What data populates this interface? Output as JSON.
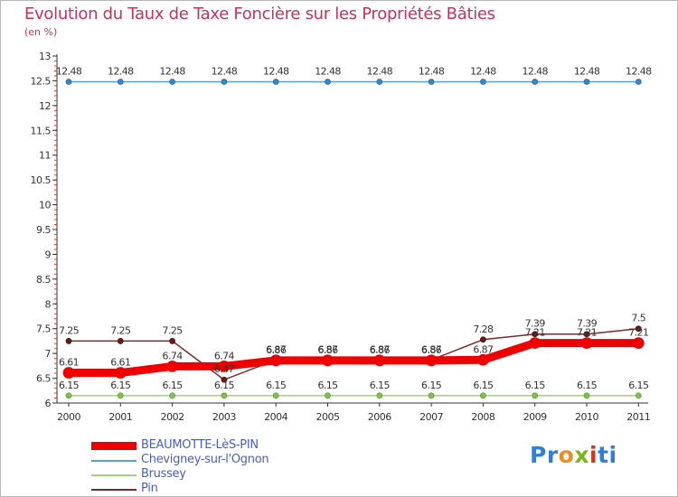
{
  "header": {
    "title": "Evolution du Taux de Taxe Foncière sur les Propriétés Bâties",
    "subtitle": "(en %)"
  },
  "brand": {
    "text": "Proxiti",
    "parts": [
      "Pr",
      "o",
      "x",
      "i",
      "ti"
    ]
  },
  "chart_data": {
    "type": "line",
    "title": "Evolution du Taux de Taxe Foncière sur les Propriétés Bâties",
    "ylabel": "(en %)",
    "xlabel": "",
    "ylim": [
      6,
      13
    ],
    "y_ticks": [
      6,
      6.5,
      7,
      7.5,
      8,
      8.5,
      9,
      9.5,
      10,
      10.5,
      11,
      11.5,
      12,
      12.5,
      13
    ],
    "y_tick_labels": [
      "6",
      "6.5",
      "7",
      "7.5",
      "8",
      "8.5",
      "9",
      "9.5",
      "10",
      "10.5",
      "11",
      "11.5",
      "12",
      "12.5",
      "13"
    ],
    "grid": false,
    "categories": [
      "2000",
      "2001",
      "2002",
      "2003",
      "2004",
      "2005",
      "2006",
      "2007",
      "2008",
      "2009",
      "2010",
      "2011"
    ],
    "legend_position": "bottom-left",
    "series": [
      {
        "name": "Chevigney-sur-l'Ognon",
        "color": "#5a9fd0",
        "values": [
          12.48,
          12.48,
          12.48,
          12.48,
          12.48,
          12.48,
          12.48,
          12.48,
          12.48,
          12.48,
          12.48,
          12.48
        ],
        "labels": [
          "12.48",
          "12.48",
          "12.48",
          "12.48",
          "12.48",
          "12.48",
          "12.48",
          "12.48",
          "12.48",
          "12.48",
          "12.48",
          "12.48"
        ]
      },
      {
        "name": "Brussey",
        "color": "#9bd67a",
        "values": [
          6.15,
          6.15,
          6.15,
          6.15,
          6.15,
          6.15,
          6.15,
          6.15,
          6.15,
          6.15,
          6.15,
          6.15
        ],
        "labels": [
          "6.15",
          "6.15",
          "6.15",
          "6.15",
          "6.15",
          "6.15",
          "6.15",
          "6.15",
          "6.15",
          "6.15",
          "6.15",
          "6.15"
        ]
      },
      {
        "name": "Pin",
        "color": "#7a2a2a",
        "values": [
          7.25,
          7.25,
          7.25,
          6.47,
          6.87,
          6.87,
          6.87,
          6.87,
          7.28,
          7.39,
          7.39,
          7.5
        ],
        "labels": [
          "7.25",
          "7.25",
          "7.25",
          "6.47",
          "6.87",
          "6.87",
          "6.87",
          "6.87",
          "7.28",
          "7.39",
          "7.39",
          "7.5"
        ]
      },
      {
        "name": "BEAUMOTTE-LèS-PIN",
        "color": "#ee0000",
        "values": [
          6.61,
          6.61,
          6.74,
          6.74,
          6.86,
          6.86,
          6.86,
          6.86,
          6.87,
          7.21,
          7.21,
          7.21
        ],
        "labels": [
          "6.61",
          "6.61",
          "6.74",
          "6.74",
          "6.86",
          "6.86",
          "6.86",
          "6.86",
          "6.87",
          "7.21",
          "7.21",
          "7.21"
        ]
      }
    ],
    "legend": [
      "BEAUMOTTE-LèS-PIN",
      "Chevigney-sur-l'Ognon",
      "Brussey",
      "Pin"
    ]
  }
}
